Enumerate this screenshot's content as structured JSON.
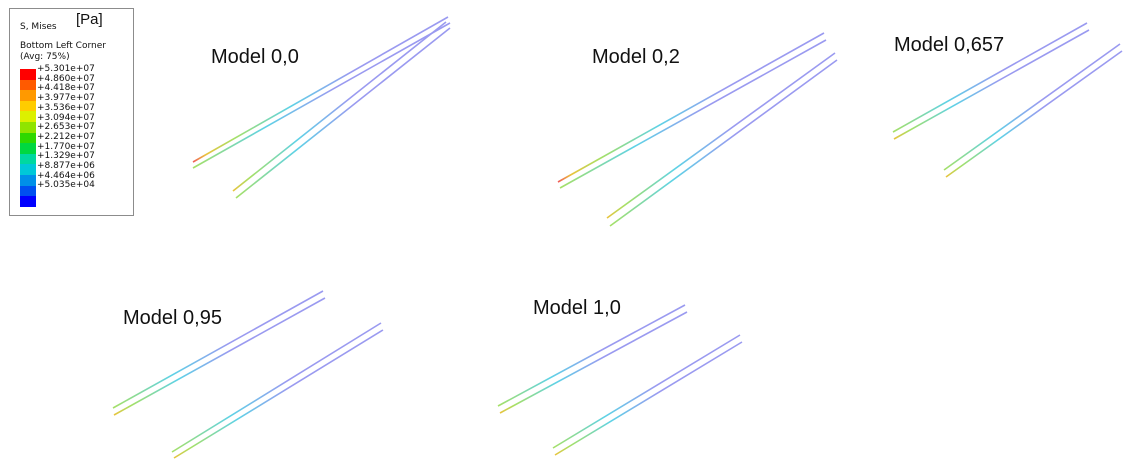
{
  "legend": {
    "variable": "S, Mises",
    "unit": "[Pa]",
    "location": "Bottom Left Corner",
    "averaging": "(Avg: 75%)",
    "values": [
      "+5.301e+07",
      "+4.860e+07",
      "+4.418e+07",
      "+3.977e+07",
      "+3.536e+07",
      "+3.094e+07",
      "+2.653e+07",
      "+2.212e+07",
      "+1.770e+07",
      "+1.329e+07",
      "+8.877e+06",
      "+4.464e+06",
      "+5.035e+04"
    ],
    "colors": [
      "#ff0000",
      "#ff5a00",
      "#ff9900",
      "#ffcc00",
      "#dcf000",
      "#90e400",
      "#2fd800",
      "#00d840",
      "#00d8a0",
      "#00c8d8",
      "#0090e8",
      "#0050f0",
      "#0000ff"
    ]
  },
  "models": [
    {
      "label": "Model 0,0"
    },
    {
      "label": "Model 0,2"
    },
    {
      "label": "Model 0,657"
    },
    {
      "label": "Model 0,95"
    },
    {
      "label": "Model 1,0"
    }
  ],
  "beam_colors": {
    "tip": "#9a9af0",
    "mid": "#5ed2e6",
    "low": "#a6e066",
    "root_low": "#eac33c",
    "root_high": "#f05a5a"
  }
}
